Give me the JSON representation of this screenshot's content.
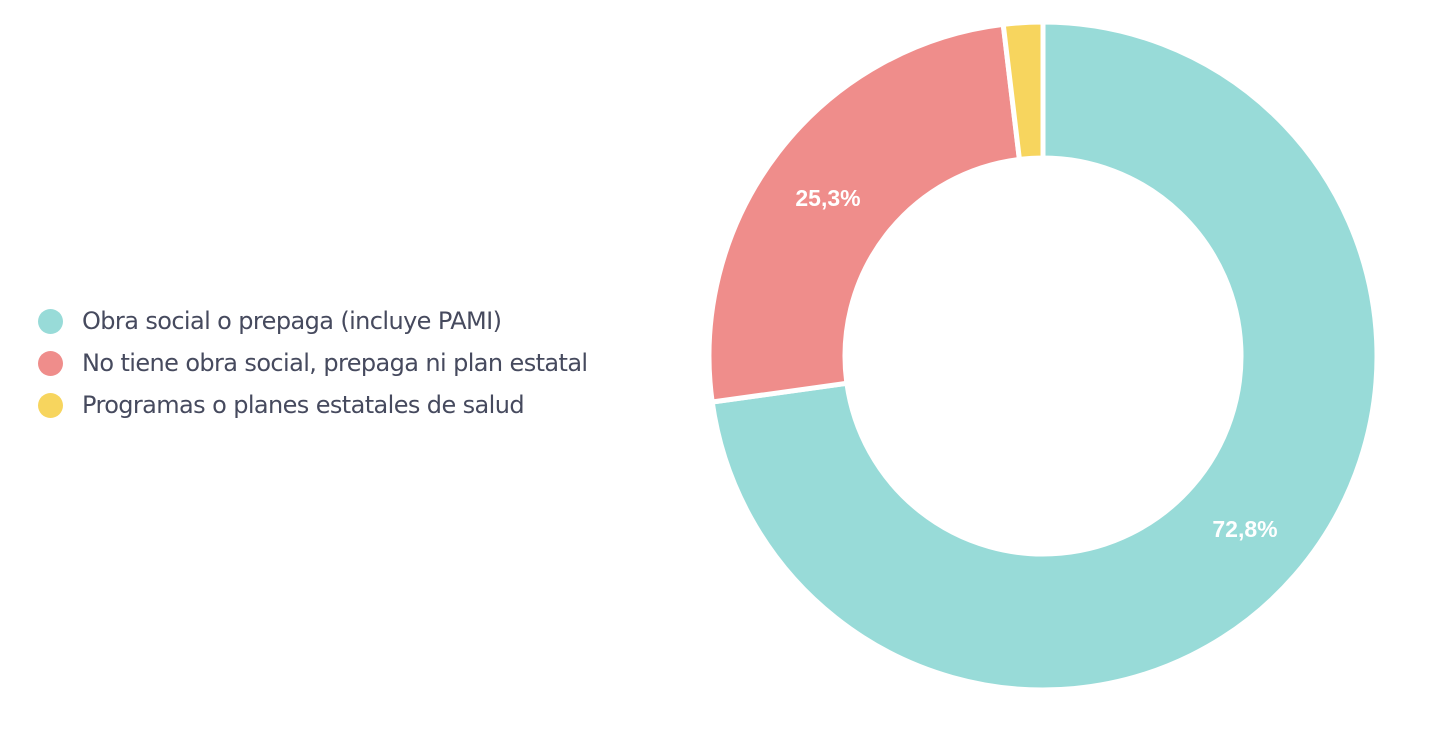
{
  "chart_data": {
    "type": "pie",
    "subtype": "donut",
    "title": "",
    "categories": [
      "Obra social o prepaga (incluye PAMI)",
      "No tiene obra social, prepaga ni plan estatal",
      "Programas o planes estatales de salud"
    ],
    "values": [
      72.8,
      25.3,
      1.9
    ],
    "data_labels": [
      "72,8%",
      "25,3%",
      ""
    ],
    "colors": [
      "#98dbd8",
      "#ef8d8b",
      "#f7d55e"
    ],
    "legend_position": "left"
  },
  "legend": {
    "items": [
      {
        "label": "Obra social o prepaga (incluye PAMI)",
        "color": "#98dbd8"
      },
      {
        "label": "No tiene obra social, prepaga ni plan estatal",
        "color": "#ef8d8b"
      },
      {
        "label": "Programas o planes estatales de salud",
        "color": "#f7d55e"
      }
    ]
  },
  "labels": {
    "teal": "72,8%",
    "red": "25,3%"
  }
}
